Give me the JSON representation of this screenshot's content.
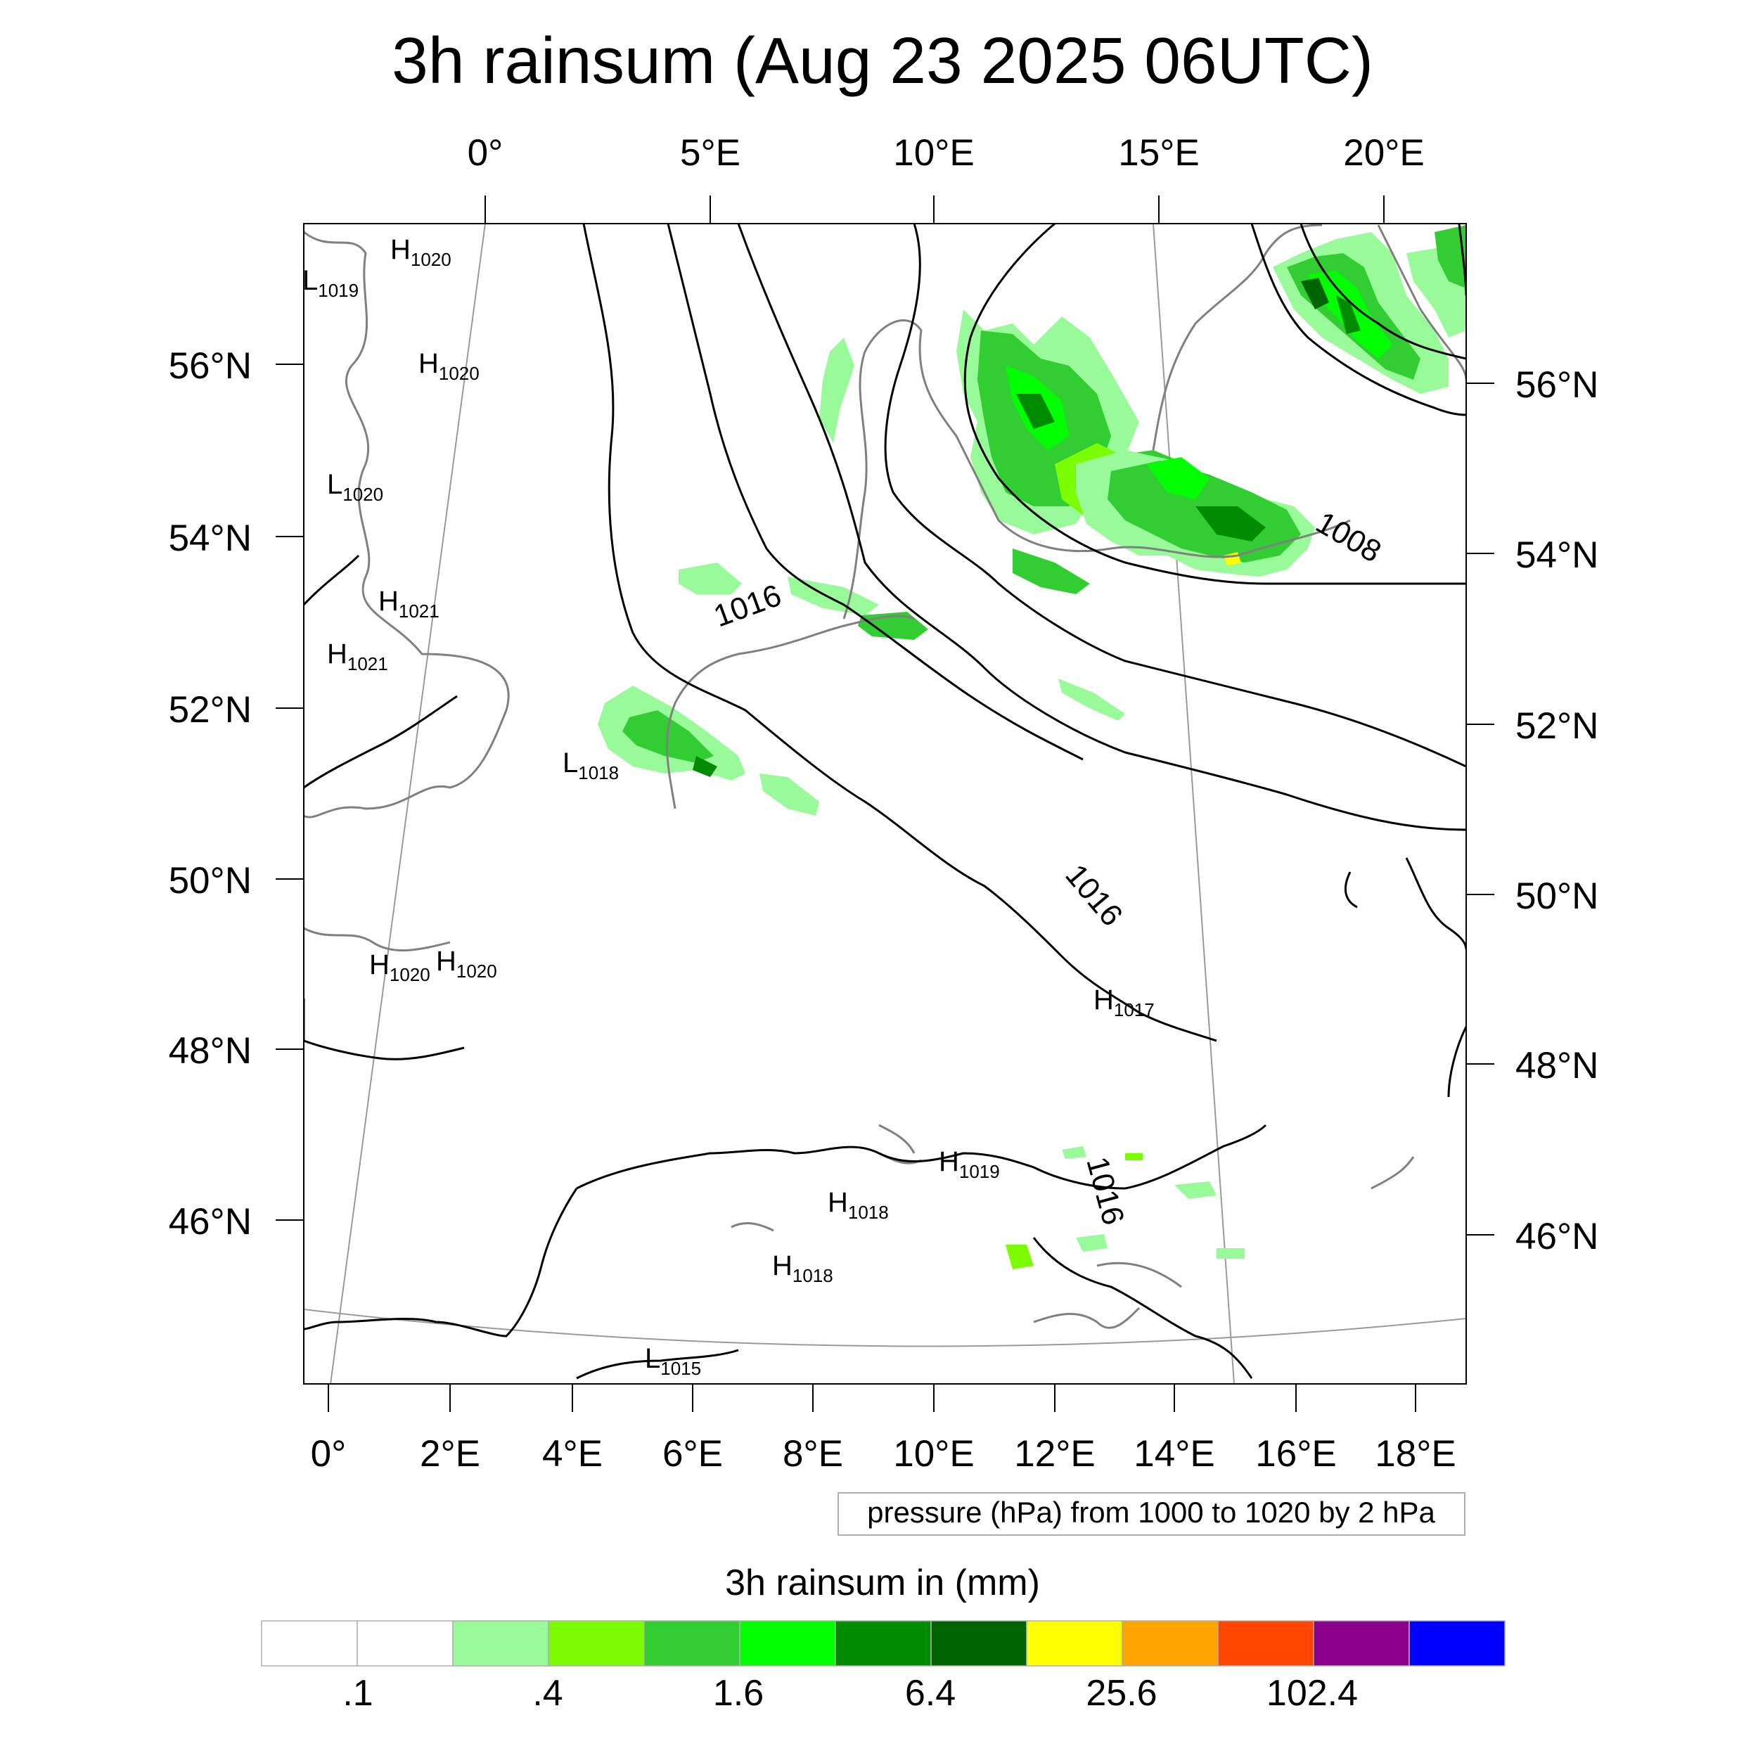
{
  "title": "3h rainsum (Aug 23 2025 06UTC)",
  "top_lon_labels": [
    "0°",
    "5°E",
    "10°E",
    "15°E",
    "20°E"
  ],
  "bottom_lon_labels": [
    "0°",
    "2°E",
    "4°E",
    "6°E",
    "8°E",
    "10°E",
    "12°E",
    "14°E",
    "16°E",
    "18°E"
  ],
  "left_lat_labels": [
    "56°N",
    "54°N",
    "52°N",
    "50°N",
    "48°N",
    "46°N"
  ],
  "right_lat_labels": [
    "56°N",
    "54°N",
    "52°N",
    "50°N",
    "48°N",
    "46°N"
  ],
  "pressure_labels": [
    {
      "kind": "L",
      "val": "1019"
    },
    {
      "kind": "H",
      "val": "1020"
    },
    {
      "kind": "H",
      "val": "1020"
    },
    {
      "kind": "L",
      "val": "1020"
    },
    {
      "kind": "H",
      "val": "1021"
    },
    {
      "kind": "H",
      "val": "1021"
    },
    {
      "kind": "L",
      "val": "1018"
    },
    {
      "kind": "H",
      "val": "1020"
    },
    {
      "kind": "H",
      "val": "1020"
    },
    {
      "kind": "H",
      "val": "1017"
    },
    {
      "kind": "H",
      "val": "1019"
    },
    {
      "kind": "H",
      "val": "1018"
    },
    {
      "kind": "H",
      "val": "1018"
    },
    {
      "kind": "L",
      "val": "1015"
    }
  ],
  "contour_labels": [
    "1016",
    "1008",
    "1016",
    "1016"
  ],
  "contour_note": "pressure (hPa) from 1000 to 1020 by 2 hPa",
  "colorbar": {
    "title": "3h rainsum in (mm)",
    "colors": [
      "#ffffff",
      "#ffffff",
      "#98fa98",
      "#7cfc00",
      "#32cd32",
      "#00ff00",
      "#008b00",
      "#006400",
      "#ffff00",
      "#ffa500",
      "#ff4500",
      "#8b008b",
      "#0000ff"
    ],
    "labels": [
      ".1",
      ".4",
      "1.6",
      "6.4",
      "25.6",
      "102.4"
    ]
  }
}
